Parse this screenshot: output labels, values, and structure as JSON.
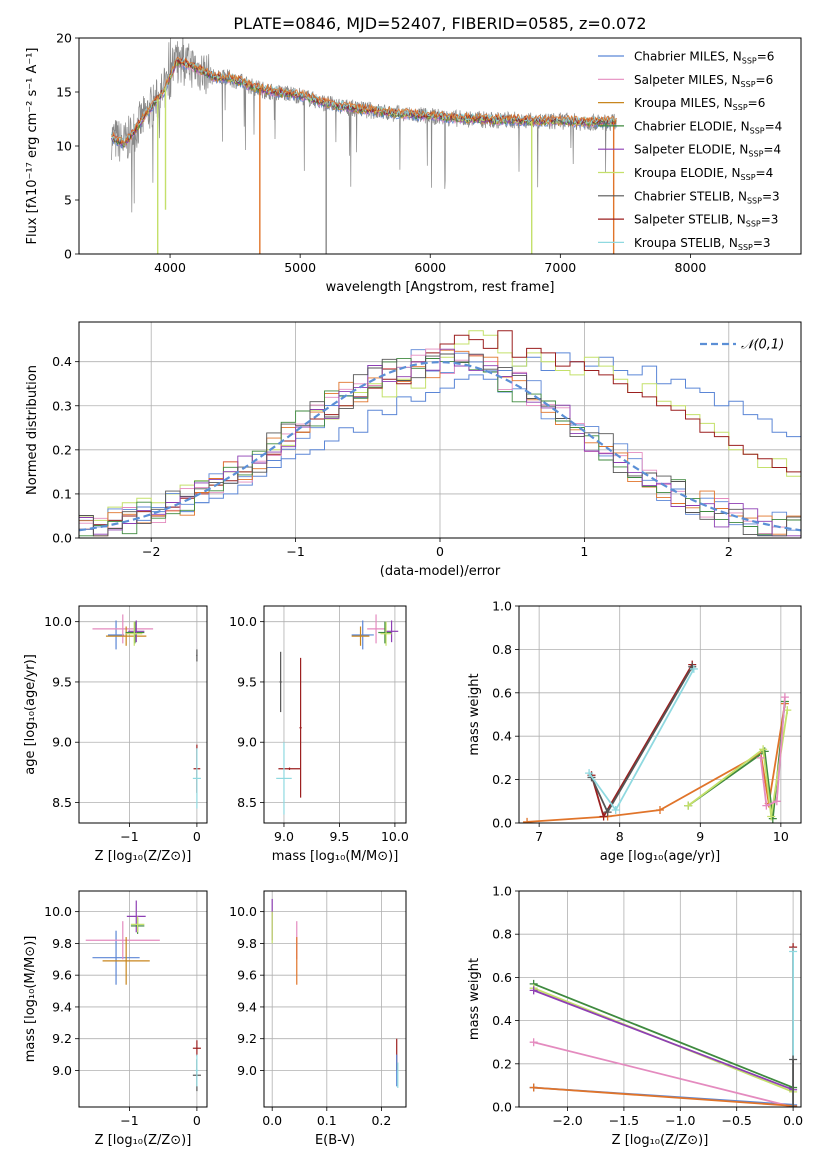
{
  "title": "PLATE=0846, MJD=52407, FIBERID=0585, z=0.072",
  "colors": {
    "chabrier_miles": "#5b86d6",
    "salpeter_miles": "#e48bbf",
    "kroupa_miles": "#c8861e",
    "chabrier_elodie": "#3f8a3f",
    "salpeter_elodie": "#8e3fb4",
    "kroupa_elodie": "#c4e06a",
    "chabrier_stelib": "#555555",
    "salpeter_stelib": "#9b1f1f",
    "kroupa_stelib": "#8fd9e0",
    "orange": "#e0742a",
    "data": "#888888",
    "normal": "#5b8fd6"
  },
  "legend_spectrum": [
    {
      "name": "Chabrier MILES",
      "n": "6",
      "color": "#5b86d6"
    },
    {
      "name": "Salpeter MILES",
      "n": "6",
      "color": "#e48bbf"
    },
    {
      "name": "Kroupa MILES",
      "n": "6",
      "color": "#c8861e"
    },
    {
      "name": "Chabrier ELODIE",
      "n": "4",
      "color": "#3f8a3f"
    },
    {
      "name": "Salpeter ELODIE",
      "n": "4",
      "color": "#8e3fb4"
    },
    {
      "name": "Kroupa ELODIE",
      "n": "4",
      "color": "#c4e06a"
    },
    {
      "name": "Chabrier STELIB",
      "n": "3",
      "color": "#555555"
    },
    {
      "name": "Salpeter STELIB",
      "n": "3",
      "color": "#9b1f1f"
    },
    {
      "name": "Kroupa STELIB",
      "n": "3",
      "color": "#8fd9e0"
    }
  ],
  "legend_normal": "𝒩(0,1)",
  "chart_data": [
    {
      "type": "line",
      "name": "spectrum",
      "xlabel": "wavelength [Angstrom, rest frame]",
      "ylabel": "Flux [fλ10⁻¹⁷ erg cm⁻² s⁻¹ A⁻¹]",
      "xlim": [
        3300,
        8850
      ],
      "ylim": [
        0,
        20
      ],
      "xticks": [
        4000,
        5000,
        6000,
        7000,
        8000
      ],
      "yticks": [
        0,
        5,
        10,
        15,
        20
      ],
      "x": [
        3550,
        3650,
        3750,
        3850,
        3950,
        4050,
        4150,
        4250,
        4350,
        4450,
        4550,
        4650,
        4750,
        4850,
        4950,
        5050,
        5150,
        5250,
        5350,
        5450,
        5550,
        5650,
        5750,
        5850,
        5950,
        6050,
        6150,
        6250,
        6350,
        6450,
        6550,
        6650,
        6750,
        6850,
        6950,
        7050,
        7150,
        7250,
        7350,
        7450
      ],
      "model_flux": [
        10.8,
        10.2,
        11.8,
        13.5,
        15.0,
        17.8,
        17.5,
        16.9,
        16.3,
        16.3,
        15.9,
        15.4,
        15.1,
        14.9,
        14.8,
        14.5,
        14.1,
        13.8,
        13.6,
        13.4,
        13.3,
        13.1,
        13.0,
        12.9,
        12.8,
        12.7,
        12.6,
        12.5,
        12.5,
        12.4,
        12.4,
        12.4,
        12.3,
        12.3,
        12.3,
        12.3,
        12.2,
        12.2,
        12.2,
        12.2
      ],
      "features": [
        {
          "x": 3905,
          "y_min": 0,
          "color": "#c4e06a"
        },
        {
          "x": 3965,
          "y_min": 4.1,
          "color": "#c4e06a"
        },
        {
          "x": 4690,
          "y_min": 0,
          "color": "#e0742a"
        },
        {
          "x": 5200,
          "y_min": 0,
          "color": "#888888"
        },
        {
          "x": 6780,
          "y_min": 0,
          "color": "#c4e06a"
        },
        {
          "x": 7410,
          "y_min": 0,
          "color": "#e0742a"
        }
      ]
    },
    {
      "type": "line",
      "name": "residual-histograms",
      "xlabel": "(data-model)/error",
      "ylabel": "Normed distribution",
      "xlim": [
        -2.5,
        2.5
      ],
      "ylim": [
        0,
        0.49
      ],
      "xticks": [
        -2,
        -1,
        0,
        1,
        2
      ],
      "yticks": [
        0.0,
        0.1,
        0.2,
        0.3,
        0.4
      ],
      "bin_edges_start": -2.5,
      "bin_width": 0.1,
      "series": [
        {
          "name": "Chabrier MILES",
          "color": "#5b86d6",
          "values": [
            0.04,
            0.03,
            0.04,
            0.05,
            0.04,
            0.06,
            0.07,
            0.06,
            0.08,
            0.09,
            0.1,
            0.12,
            0.14,
            0.16,
            0.18,
            0.19,
            0.2,
            0.22,
            0.25,
            0.24,
            0.29,
            0.28,
            0.32,
            0.31,
            0.33,
            0.34,
            0.36,
            0.37,
            0.36,
            0.38,
            0.39,
            0.41,
            0.38,
            0.42,
            0.4,
            0.39,
            0.41,
            0.38,
            0.37,
            0.39,
            0.35,
            0.36,
            0.34,
            0.33,
            0.3,
            0.31,
            0.28,
            0.27,
            0.24,
            0.23
          ]
        },
        {
          "name": "Kroupa ELODIE",
          "color": "#c4e06a",
          "values": [
            0.05,
            0.04,
            0.07,
            0.08,
            0.09,
            0.08,
            0.1,
            0.12,
            0.13,
            0.12,
            0.15,
            0.15,
            0.19,
            0.2,
            0.21,
            0.24,
            0.29,
            0.27,
            0.3,
            0.33,
            0.35,
            0.32,
            0.36,
            0.34,
            0.38,
            0.41,
            0.44,
            0.47,
            0.46,
            0.42,
            0.39,
            0.42,
            0.4,
            0.38,
            0.37,
            0.41,
            0.39,
            0.36,
            0.33,
            0.35,
            0.31,
            0.3,
            0.28,
            0.26,
            0.24,
            0.2,
            0.19,
            0.16,
            0.18,
            0.14
          ]
        },
        {
          "name": "Salpeter STELIB",
          "color": "#9b1f1f",
          "values": [
            0.02,
            0.03,
            0.04,
            0.05,
            0.06,
            0.05,
            0.07,
            0.09,
            0.1,
            0.12,
            0.13,
            0.15,
            0.17,
            0.19,
            0.22,
            0.24,
            0.27,
            0.28,
            0.3,
            0.32,
            0.34,
            0.36,
            0.35,
            0.4,
            0.42,
            0.44,
            0.46,
            0.45,
            0.43,
            0.47,
            0.41,
            0.43,
            0.42,
            0.39,
            0.4,
            0.38,
            0.37,
            0.35,
            0.33,
            0.32,
            0.3,
            0.29,
            0.27,
            0.24,
            0.23,
            0.21,
            0.19,
            0.18,
            0.16,
            0.15
          ]
        }
      ],
      "normal_curve": {
        "name": "𝒩(0,1)",
        "mean": 0,
        "sigma": 1
      }
    },
    {
      "type": "scatter",
      "name": "age-vs-Z",
      "xlabel": "Z [log₁₀(Z/Z⊙)]",
      "ylabel": "age  [log₁₀(age/yr)]",
      "xlim": [
        -1.75,
        0.15
      ],
      "ylim": [
        8.33,
        10.13
      ],
      "xticks": [
        -1,
        0
      ],
      "yticks": [
        8.5,
        9.0,
        9.5,
        10.0
      ],
      "points": [
        {
          "x": -1.2,
          "y": 9.89,
          "xerr": 0.12,
          "yerr": 0.12,
          "color": "#5b86d6"
        },
        {
          "x": -1.1,
          "y": 9.94,
          "xerr": 0.45,
          "yerr": 0.12,
          "color": "#e48bbf"
        },
        {
          "x": -1.05,
          "y": 9.88,
          "xerr": 0.3,
          "yerr": 0.08,
          "color": "#c8861e"
        },
        {
          "x": -0.92,
          "y": 9.91,
          "xerr": 0.14,
          "yerr": 0.09,
          "color": "#3f8a3f"
        },
        {
          "x": -0.9,
          "y": 9.92,
          "xerr": 0.12,
          "yerr": 0.09,
          "color": "#8e3fb4"
        },
        {
          "x": -0.93,
          "y": 9.9,
          "xerr": 0.12,
          "yerr": 0.1,
          "color": "#c4e06a"
        },
        {
          "x": 0.0,
          "y": 9.72,
          "xerr": 0.01,
          "yerr": 0.05,
          "color": "#555555"
        },
        {
          "x": 0.0,
          "y": 8.78,
          "xerr": 0.05,
          "yerr": 0.2,
          "color": "#9b1f1f"
        },
        {
          "x": 0.0,
          "y": 8.7,
          "xerr": 0.06,
          "yerr": 0.25,
          "color": "#8fd9e0"
        }
      ]
    },
    {
      "type": "scatter",
      "name": "age-vs-mass",
      "xlabel": "mass [log₁₀(M/M⊙)]",
      "ylabel": "",
      "xlim": [
        8.82,
        10.1
      ],
      "ylim": [
        8.33,
        10.13
      ],
      "xticks": [
        9.0,
        9.5,
        10.0
      ],
      "yticks": [
        8.5,
        9.0,
        9.5,
        10.0
      ],
      "points": [
        {
          "x": 9.71,
          "y": 9.89,
          "xerr": 0.1,
          "yerr": 0.12,
          "color": "#5b86d6"
        },
        {
          "x": 9.83,
          "y": 9.94,
          "xerr": 0.08,
          "yerr": 0.12,
          "color": "#e48bbf"
        },
        {
          "x": 9.69,
          "y": 9.88,
          "xerr": 0.08,
          "yerr": 0.08,
          "color": "#c8861e"
        },
        {
          "x": 9.91,
          "y": 9.91,
          "xerr": 0.06,
          "yerr": 0.09,
          "color": "#3f8a3f"
        },
        {
          "x": 9.97,
          "y": 9.92,
          "xerr": 0.06,
          "yerr": 0.09,
          "color": "#8e3fb4"
        },
        {
          "x": 9.92,
          "y": 9.9,
          "xerr": 0.05,
          "yerr": 0.1,
          "color": "#c4e06a"
        },
        {
          "x": 8.97,
          "y": 9.5,
          "xerr": 0.01,
          "yerr": 0.25,
          "color": "#555555"
        },
        {
          "x": 9.15,
          "y": 9.12,
          "xerr": 0.01,
          "yerr": 0.58,
          "color": "#9b1f1f"
        },
        {
          "x": 9.05,
          "y": 8.78,
          "xerr": 0.1,
          "yerr": 0.01,
          "color": "#9b1f1f"
        },
        {
          "x": 9.0,
          "y": 8.7,
          "xerr": 0.07,
          "yerr": 0.3,
          "color": "#8fd9e0"
        }
      ]
    },
    {
      "type": "line",
      "name": "mass-weight-vs-age",
      "xlabel": "age  [log₁₀(age/yr)]",
      "ylabel": "mass weight",
      "xlim": [
        6.75,
        10.25
      ],
      "ylim": [
        0,
        1.0
      ],
      "xticks": [
        7,
        8,
        9,
        10
      ],
      "yticks": [
        0.0,
        0.2,
        0.4,
        0.6,
        0.8,
        1.0
      ],
      "series": [
        {
          "name": "Chabrier MILES",
          "color": "#e0742a",
          "x": [
            6.85,
            7.85,
            8.5,
            9.75,
            9.85,
            10.05
          ],
          "y": [
            0.005,
            0.03,
            0.06,
            0.32,
            0.09,
            0.55
          ]
        },
        {
          "name": "Chabrier ELODIE",
          "color": "#3f8a3f",
          "x": [
            8.85,
            9.8,
            9.9,
            10.05
          ],
          "y": [
            0.08,
            0.33,
            0.02,
            0.56
          ]
        },
        {
          "name": "Kroupa ELODIE",
          "color": "#c4e06a",
          "x": [
            8.85,
            9.78,
            9.88,
            10.08
          ],
          "y": [
            0.08,
            0.34,
            0.03,
            0.52
          ]
        },
        {
          "name": "Salpeter STELIB",
          "color": "#9b1f1f",
          "x": [
            7.65,
            7.8,
            8.9
          ],
          "y": [
            0.22,
            0.03,
            0.73
          ]
        },
        {
          "name": "Chabrier STELIB",
          "color": "#555555",
          "x": [
            7.65,
            7.85,
            8.9
          ],
          "y": [
            0.21,
            0.05,
            0.72
          ]
        },
        {
          "name": "Kroupa STELIB",
          "color": "#8fd9e0",
          "x": [
            7.62,
            7.95,
            8.92
          ],
          "y": [
            0.23,
            0.06,
            0.71
          ]
        },
        {
          "name": "Salpeter MILES",
          "color": "#e48bbf",
          "x": [
            9.75,
            9.82,
            9.95,
            10.05
          ],
          "y": [
            0.3,
            0.08,
            0.1,
            0.58
          ]
        }
      ]
    },
    {
      "type": "scatter",
      "name": "mass-vs-Z",
      "xlabel": "Z [log₁₀(Z/Z⊙)]",
      "ylabel": "mass [log₁₀(M/M⊙)]",
      "xlim": [
        -1.75,
        0.15
      ],
      "ylim": [
        8.77,
        10.13
      ],
      "xticks": [
        -1,
        0
      ],
      "yticks": [
        9.0,
        9.2,
        9.4,
        9.6,
        9.8,
        10.0
      ],
      "points": [
        {
          "x": -1.2,
          "y": 9.71,
          "xerr": 0.35,
          "yerr": 0.17,
          "color": "#5b86d6"
        },
        {
          "x": -1.1,
          "y": 9.82,
          "xerr": 0.55,
          "yerr": 0.12,
          "color": "#e48bbf"
        },
        {
          "x": -1.05,
          "y": 9.69,
          "xerr": 0.35,
          "yerr": 0.15,
          "color": "#c8861e"
        },
        {
          "x": -0.9,
          "y": 9.97,
          "xerr": 0.14,
          "yerr": 0.1,
          "color": "#8e3fb4"
        },
        {
          "x": -0.88,
          "y": 9.91,
          "xerr": 0.1,
          "yerr": 0.05,
          "color": "#3f8a3f"
        },
        {
          "x": -0.88,
          "y": 9.92,
          "xerr": 0.1,
          "yerr": 0.05,
          "color": "#c4e06a"
        },
        {
          "x": 0.0,
          "y": 9.14,
          "xerr": 0.06,
          "yerr": 0.05,
          "color": "#9b1f1f"
        },
        {
          "x": 0.0,
          "y": 8.97,
          "xerr": 0.06,
          "yerr": 0.1,
          "color": "#555555"
        },
        {
          "x": 0.0,
          "y": 9.0,
          "xerr": 0.02,
          "yerr": 0.1,
          "color": "#8fd9e0"
        }
      ]
    },
    {
      "type": "scatter",
      "name": "mass-vs-EBV",
      "xlabel": "E(B-V)",
      "ylabel": "",
      "xlim": [
        -0.015,
        0.245
      ],
      "ylim": [
        8.77,
        10.13
      ],
      "xticks": [
        0.0,
        0.1,
        0.2
      ],
      "yticks": [
        9.0,
        9.2,
        9.4,
        9.6,
        9.8,
        10.0
      ],
      "points": [
        {
          "x": 0.0,
          "y": 9.95,
          "xerr": 0.0,
          "yerr": 0.13,
          "color": "#8e3fb4"
        },
        {
          "x": 0.0,
          "y": 9.9,
          "xerr": 0.0,
          "yerr": 0.1,
          "color": "#c4e06a"
        },
        {
          "x": 0.045,
          "y": 9.82,
          "xerr": 0.0,
          "yerr": 0.12,
          "color": "#e48bbf"
        },
        {
          "x": 0.045,
          "y": 9.69,
          "xerr": 0.0,
          "yerr": 0.15,
          "color": "#e0742a"
        },
        {
          "x": 0.228,
          "y": 9.1,
          "xerr": 0.0,
          "yerr": 0.1,
          "color": "#9b1f1f"
        },
        {
          "x": 0.228,
          "y": 9.0,
          "xerr": 0.0,
          "yerr": 0.1,
          "color": "#5b86d6"
        },
        {
          "x": 0.23,
          "y": 8.97,
          "xerr": 0.0,
          "yerr": 0.08,
          "color": "#8fd9e0"
        }
      ]
    },
    {
      "type": "line",
      "name": "mass-weight-vs-Z",
      "xlabel": "Z [log₁₀(Z/Z⊙)]",
      "ylabel": "mass weight",
      "xlim": [
        -2.43,
        0.07
      ],
      "ylim": [
        0,
        1.0
      ],
      "xticks": [
        -2.0,
        -1.5,
        -1.0,
        -0.5,
        0.0
      ],
      "yticks": [
        0.0,
        0.2,
        0.4,
        0.6,
        0.8,
        1.0
      ],
      "series": [
        {
          "name": "Chabrier ELODIE",
          "color": "#3f8a3f",
          "x": [
            -2.3,
            0.0
          ],
          "y": [
            0.57,
            0.09
          ]
        },
        {
          "name": "Kroupa ELODIE",
          "color": "#c4e06a",
          "x": [
            -2.3,
            0.0
          ],
          "y": [
            0.55,
            0.07
          ]
        },
        {
          "name": "Salpeter ELODIE",
          "color": "#8e3fb4",
          "x": [
            -2.3,
            0.0
          ],
          "y": [
            0.54,
            0.08
          ]
        },
        {
          "name": "Chabrier MILES",
          "color": "#5b86d6",
          "x": [
            -2.3,
            0.0
          ],
          "y": [
            0.09,
            0.01
          ]
        },
        {
          "name": "Salpeter MILES",
          "color": "#e48bbf",
          "x": [
            -2.3,
            0.0
          ],
          "y": [
            0.3,
            0.0
          ]
        },
        {
          "name": "Kroupa MILES",
          "color": "#e0742a",
          "x": [
            -2.3,
            0.0
          ],
          "y": [
            0.09,
            0.005
          ]
        },
        {
          "name": "Salpeter STELIB",
          "color": "#9b1f1f",
          "x": [
            0.0,
            0.0
          ],
          "y": [
            0.0,
            0.74
          ]
        },
        {
          "name": "Kroupa STELIB",
          "color": "#8fd9e0",
          "x": [
            0.0,
            0.0
          ],
          "y": [
            0.0,
            0.72
          ]
        },
        {
          "name": "Chabrier STELIB",
          "color": "#555555",
          "x": [
            0.0,
            0.0
          ],
          "y": [
            0.0,
            0.22
          ]
        }
      ]
    }
  ]
}
